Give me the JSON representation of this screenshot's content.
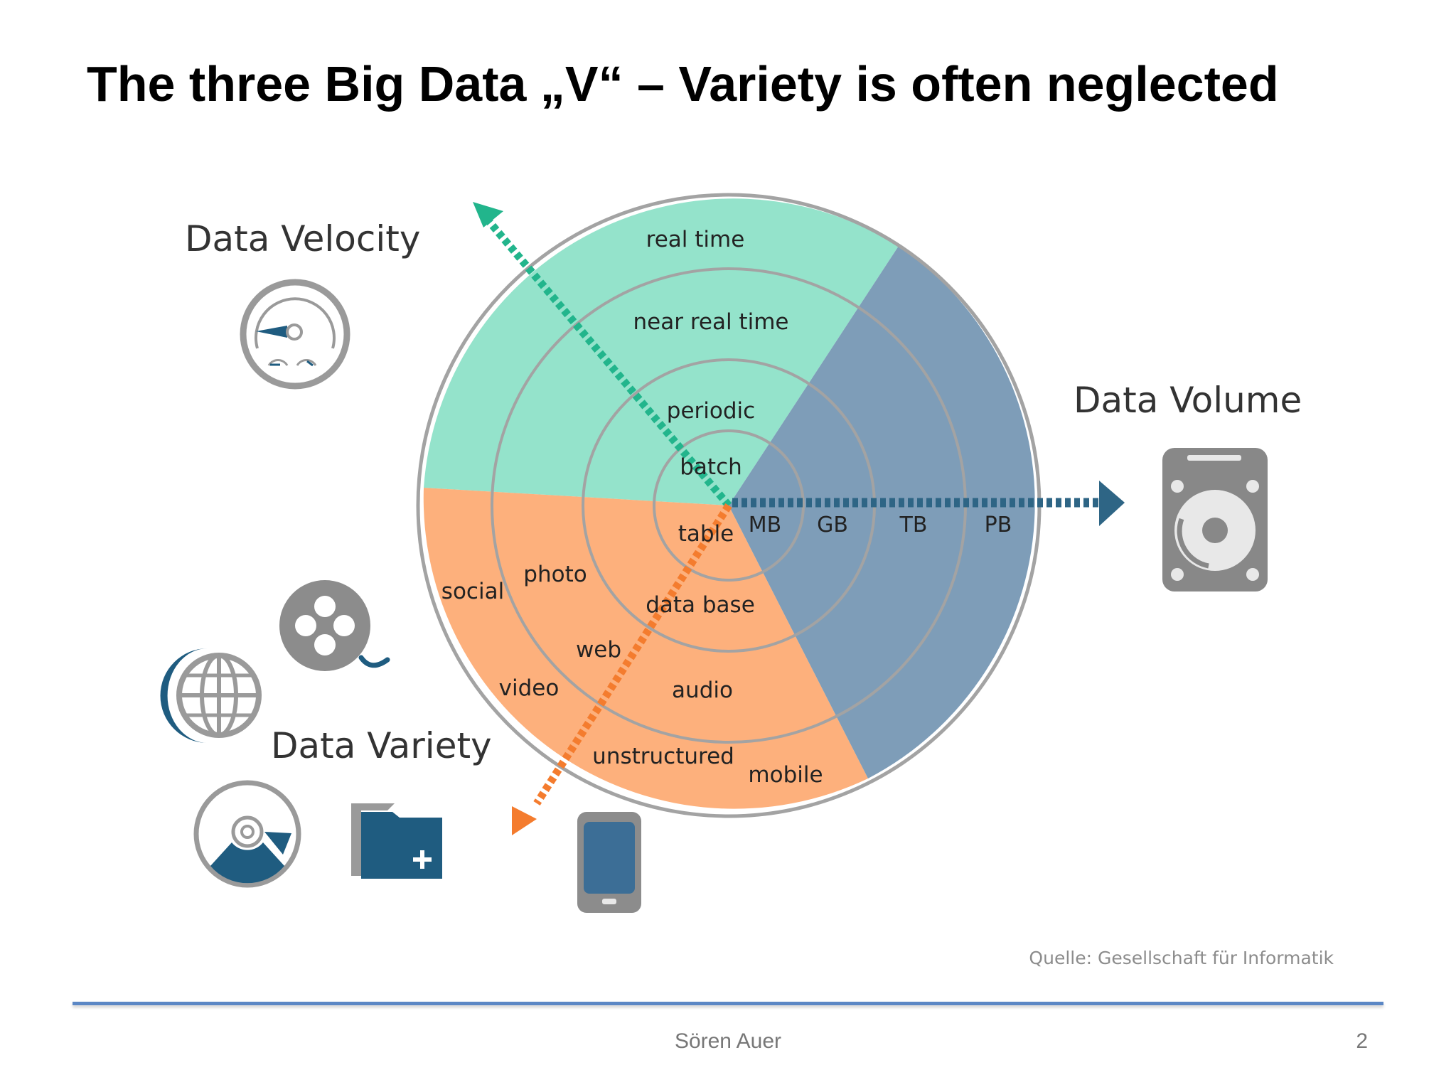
{
  "slide": {
    "title": "The three Big Data „V“ – Variety is often neglected",
    "source": "Quelle: Gesellschaft für Informatik",
    "author": "Sören Auer",
    "page_number": "2"
  },
  "diagram": {
    "velocity": {
      "title": "Data Velocity",
      "rings": [
        "real time",
        "near real time",
        "periodic",
        "batch"
      ],
      "color": "#94e3cb",
      "arrow_color": "#22b58c"
    },
    "volume": {
      "title": "Data Volume",
      "units": [
        "MB",
        "GB",
        "TB",
        "PB"
      ],
      "color": "#7e9db8",
      "arrow_color": "#2e6585"
    },
    "variety": {
      "title": "Data Variety",
      "labels": [
        "table",
        "data base",
        "photo",
        "web",
        "audio",
        "social",
        "video",
        "unstructured",
        "mobile"
      ],
      "color": "#fdb07c",
      "arrow_color": "#f47c2e"
    },
    "icons": [
      "speedometer-icon",
      "hard-drive-icon",
      "film-reel-icon",
      "globe-icon",
      "disc-icon",
      "folder-add-icon",
      "mobile-phone-icon"
    ]
  }
}
